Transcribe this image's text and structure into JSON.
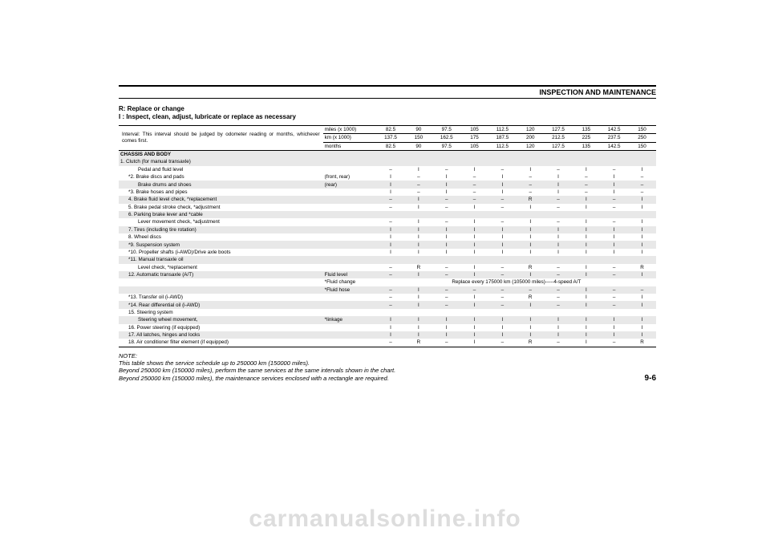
{
  "header": "INSPECTION AND MAINTENANCE",
  "legend_line1": "R: Replace or change",
  "legend_line2": "I : Inspect, clean, adjust, lubricate or replace as necessary",
  "interval_text": "Interval: This interval should be judged by odometer reading or months, whichever comes first.",
  "units": {
    "miles": "miles (x 1000)",
    "km": "km (x 1000)",
    "months": "months"
  },
  "cols_miles": [
    "82.5",
    "90",
    "97.5",
    "105",
    "112.5",
    "120",
    "127.5",
    "135",
    "142.5",
    "150"
  ],
  "cols_km": [
    "137.5",
    "150",
    "162.5",
    "175",
    "187.5",
    "200",
    "212.5",
    "225",
    "237.5",
    "250"
  ],
  "cols_months": [
    "82.5",
    "90",
    "97.5",
    "105",
    "112.5",
    "120",
    "127.5",
    "135",
    "142.5",
    "150"
  ],
  "section": "CHASSIS AND BODY",
  "rows": [
    {
      "label": "1. Clutch (for manual transaxle)",
      "shade": true,
      "span": true
    },
    {
      "label": "Pedal and fluid level",
      "indent": 2,
      "vals": [
        "–",
        "I",
        "–",
        "I",
        "–",
        "I",
        "–",
        "I",
        "–",
        "I"
      ]
    },
    {
      "label": "*2. Brake discs and pads",
      "sub": "(front, rear)",
      "indent": 1,
      "vals": [
        "I",
        "–",
        "I",
        "–",
        "I",
        "–",
        "I",
        "–",
        "I",
        "–"
      ]
    },
    {
      "label": "Brake drums and shoes",
      "sub": "(rear)",
      "indent": 2,
      "shade": true,
      "vals": [
        "I",
        "–",
        "I",
        "–",
        "I",
        "–",
        "I",
        "–",
        "I",
        "–"
      ]
    },
    {
      "label": "*3. Brake hoses and pipes",
      "indent": 1,
      "vals": [
        "I",
        "–",
        "I",
        "–",
        "I",
        "–",
        "I",
        "–",
        "I",
        "–"
      ]
    },
    {
      "label": "4. Brake fluid level check, *replacement",
      "indent": 1,
      "shade": true,
      "vals": [
        "–",
        "I",
        "–",
        "–",
        "–",
        "R",
        "–",
        "I",
        "–",
        "I"
      ]
    },
    {
      "label": "5. Brake pedal stroke check, *adjustment",
      "indent": 1,
      "vals": [
        "–",
        "I",
        "–",
        "I",
        "–",
        "I",
        "–",
        "I",
        "–",
        "I"
      ]
    },
    {
      "label": "6. Parking brake lever and *cable",
      "indent": 1,
      "shade": true,
      "span": true
    },
    {
      "label": "Lever movement check, *adjustment",
      "indent": 2,
      "vals": [
        "–",
        "I",
        "–",
        "I",
        "–",
        "I",
        "–",
        "I",
        "–",
        "I"
      ]
    },
    {
      "label": "7. Tires (including tire rotation)",
      "indent": 1,
      "shade": true,
      "vals": [
        "I",
        "I",
        "I",
        "I",
        "I",
        "I",
        "I",
        "I",
        "I",
        "I"
      ]
    },
    {
      "label": "8. Wheel discs",
      "indent": 1,
      "vals": [
        "I",
        "I",
        "I",
        "I",
        "I",
        "I",
        "I",
        "I",
        "I",
        "I"
      ]
    },
    {
      "label": "*9. Suspension system",
      "indent": 1,
      "shade": true,
      "vals": [
        "I",
        "I",
        "I",
        "I",
        "I",
        "I",
        "I",
        "I",
        "I",
        "I"
      ]
    },
    {
      "label": "*10. Propeller shafts (i-AWD)/Drive axle boots",
      "indent": 1,
      "vals": [
        "I",
        "I",
        "I",
        "I",
        "I",
        "I",
        "I",
        "I",
        "I",
        "I"
      ]
    },
    {
      "label": "*11. Manual transaxle oil",
      "indent": 1,
      "shade": true,
      "span": true
    },
    {
      "label": "Level check, *replacement",
      "indent": 2,
      "vals": [
        "–",
        "R",
        "–",
        "I",
        "–",
        "R",
        "–",
        "I",
        "–",
        "R"
      ]
    },
    {
      "label": "12. Automatic transaxle (A/T)",
      "sub": "Fluid level",
      "indent": 1,
      "shade": true,
      "vals": [
        "–",
        "I",
        "–",
        "I",
        "–",
        "I",
        "–",
        "I",
        "–",
        "I"
      ]
    },
    {
      "label": "",
      "sub": "*Fluid change",
      "indent": 2,
      "span_note": "Replace every 175000 km (105000 miles)-----4-speed A/T"
    },
    {
      "label": "",
      "sub": "*Fluid hose",
      "indent": 2,
      "shade": true,
      "vals": [
        "–",
        "I",
        "–",
        "–",
        "–",
        "–",
        "–",
        "I",
        "–",
        "–"
      ]
    },
    {
      "label": "*13. Transfer oil (i-AWD)",
      "indent": 1,
      "vals": [
        "–",
        "I",
        "–",
        "I",
        "–",
        "R",
        "–",
        "I",
        "–",
        "I"
      ]
    },
    {
      "label": "*14. Rear differential oil (i-AWD)",
      "indent": 1,
      "shade": true,
      "vals": [
        "–",
        "I",
        "–",
        "I",
        "–",
        "I",
        "–",
        "I",
        "–",
        "I"
      ]
    },
    {
      "label": "15. Steering system",
      "indent": 1,
      "span": true
    },
    {
      "label": "Steering wheel movement,",
      "sub": "*linkage",
      "indent": 2,
      "shade": true,
      "vals": [
        "I",
        "I",
        "I",
        "I",
        "I",
        "I",
        "I",
        "I",
        "I",
        "I"
      ]
    },
    {
      "label": "16. Power steering (if equipped)",
      "indent": 1,
      "vals": [
        "I",
        "I",
        "I",
        "I",
        "I",
        "I",
        "I",
        "I",
        "I",
        "I"
      ]
    },
    {
      "label": "17. All latches, hinges and locks",
      "indent": 1,
      "shade": true,
      "vals": [
        "I",
        "I",
        "I",
        "I",
        "I",
        "I",
        "I",
        "I",
        "I",
        "I"
      ]
    },
    {
      "label": "18. Air conditioner filter element (if equipped)",
      "indent": 1,
      "vals": [
        "–",
        "R",
        "–",
        "I",
        "–",
        "R",
        "–",
        "I",
        "–",
        "R"
      ]
    }
  ],
  "note_head": "NOTE:",
  "note_l1": "This table shows the service schedule up to 250000 km (150000 miles).",
  "note_l2": "Beyond 250000 km (150000 miles), perform the same services at the same intervals shown in the chart.",
  "note_l3": "Beyond 250000 km (150000 miles), the maintenance services enclosed with a rectangle are required.",
  "page_num": "9-6",
  "watermark": "carmanualsonline.info",
  "style": {
    "bg": "#ffffff",
    "text": "#000000",
    "shade": "#e8e8e8",
    "watermark": "#dddddd",
    "font_body": 6.3,
    "font_header": 9,
    "font_legend": 8,
    "font_note": 7.5,
    "font_pagenum": 10,
    "font_watermark": 30
  }
}
